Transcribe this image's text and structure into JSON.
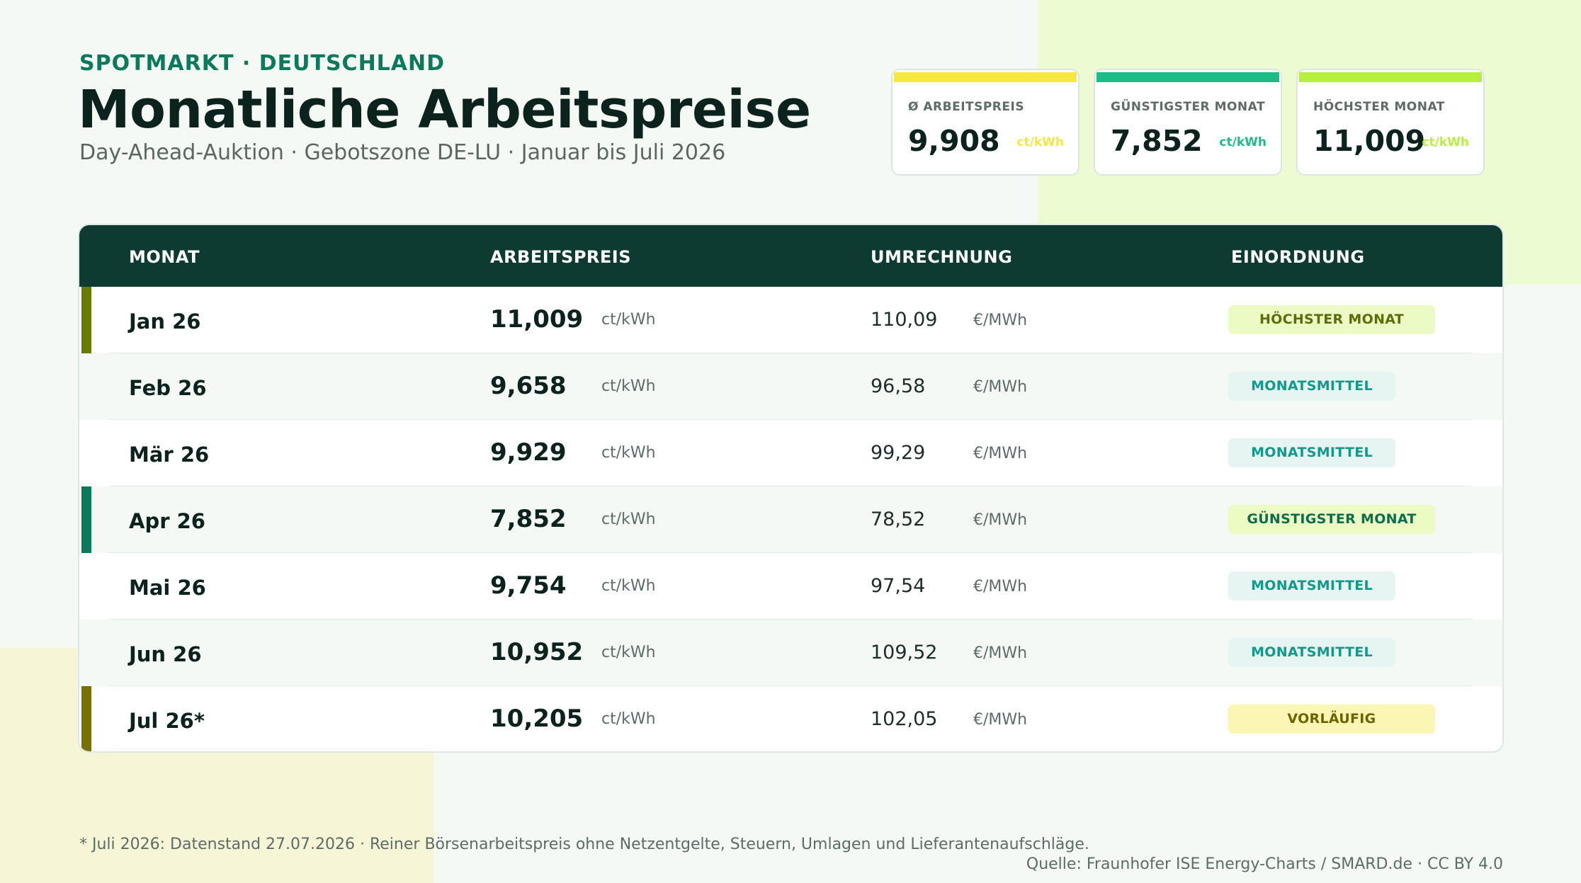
{
  "header": {
    "eyebrow": "SPOTMARKT · DEUTSCHLAND",
    "title": "Monatliche Arbeitspreise",
    "subtitle": "Day-Ahead-Auktion · Gebotszone DE-LU · Januar bis Juli 2026"
  },
  "kpis": [
    {
      "label": "Ø ARBEITSPREIS",
      "value": "9,908",
      "unit": "ct/kWh",
      "color": "#f5e840"
    },
    {
      "label": "GÜNSTIGSTER MONAT",
      "value": "7,852",
      "unit": "ct/kWh",
      "color": "#1dbc87"
    },
    {
      "label": "HÖCHSTER MONAT",
      "value": "11,009",
      "unit": "ct/kWh",
      "color": "#b6ef3e"
    }
  ],
  "table": {
    "headers": [
      "MONAT",
      "ARBEITSPREIS",
      "UMRECHNUNG",
      "EINORDNUNG"
    ],
    "rows": [
      {
        "month": "Jan 26",
        "price": "11,009",
        "price_unit": "ct/kWh",
        "conv": "110,09",
        "conv_unit": "€/MWh",
        "badge": "HÖCHSTER MONAT",
        "badge_bg": "#ecfbc4",
        "badge_fg": "#5a6e0a",
        "accent": "#6b7a00"
      },
      {
        "month": "Feb 26",
        "price": "9,658",
        "price_unit": "ct/kWh",
        "conv": "96,58",
        "conv_unit": "€/MWh",
        "badge": "MONATSMITTEL",
        "badge_bg": "#e6f5f2",
        "badge_fg": "#11998a",
        "accent": ""
      },
      {
        "month": "Mär 26",
        "price": "9,929",
        "price_unit": "ct/kWh",
        "conv": "99,29",
        "conv_unit": "€/MWh",
        "badge": "MONATSMITTEL",
        "badge_bg": "#e6f5f2",
        "badge_fg": "#11998a",
        "accent": ""
      },
      {
        "month": "Apr 26",
        "price": "7,852",
        "price_unit": "ct/kWh",
        "conv": "78,52",
        "conv_unit": "€/MWh",
        "badge": "GÜNSTIGSTER MONAT",
        "badge_bg": "#ecfbc4",
        "badge_fg": "#0a6e4e",
        "accent": "#0a7a5b"
      },
      {
        "month": "Mai 26",
        "price": "9,754",
        "price_unit": "ct/kWh",
        "conv": "97,54",
        "conv_unit": "€/MWh",
        "badge": "MONATSMITTEL",
        "badge_bg": "#e6f5f2",
        "badge_fg": "#11998a",
        "accent": ""
      },
      {
        "month": "Jun 26",
        "price": "10,952",
        "price_unit": "ct/kWh",
        "conv": "109,52",
        "conv_unit": "€/MWh",
        "badge": "MONATSMITTEL",
        "badge_bg": "#e6f5f2",
        "badge_fg": "#11998a",
        "accent": ""
      },
      {
        "month": "Jul 26*",
        "price": "10,205",
        "price_unit": "ct/kWh",
        "conv": "102,05",
        "conv_unit": "€/MWh",
        "badge": "VORLÄUFIG",
        "badge_bg": "#fbf6b4",
        "badge_fg": "#6b6400",
        "accent": "#787000"
      }
    ]
  },
  "footer": {
    "note": "* Juli 2026: Datenstand 27.07.2026 · Reiner Börsenarbeitspreis ohne Netzentgelte, Steuern, Umlagen und Lieferantenaufschläge.",
    "source": "Quelle: Fraunhofer ISE Energy-Charts / SMARD.de · CC BY 4.0"
  }
}
